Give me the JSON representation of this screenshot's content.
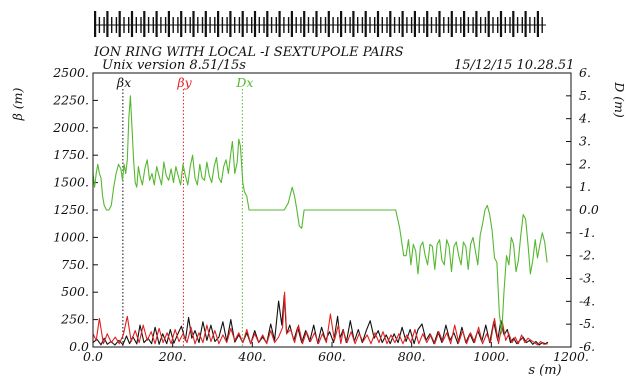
{
  "chart_data": {
    "type": "line",
    "title": "ION RING WITH LOCAL -I SEXTUPOLE PAIRS",
    "subtitle": "Unix version 8.51/15s",
    "timestamp": "15/12/15  10.28.51",
    "xlabel": "s (m)",
    "ylabel_left": "β (m)",
    "ylabel_right": "D (m)",
    "xlim": [
      0,
      1200
    ],
    "ylim_left": [
      0,
      2500
    ],
    "ylim_right": [
      -6,
      6
    ],
    "x_ticks": [
      "0.0",
      "200.",
      "400.",
      "600.",
      "800.",
      "1000.",
      "1200."
    ],
    "y_ticks_left": [
      "0.0",
      "250.",
      "500.",
      "750.",
      "1000.",
      "1250.",
      "1500.",
      "1750.",
      "2000.",
      "2250.",
      "2500."
    ],
    "y_ticks_right": [
      "-6.",
      "-5.",
      "-4.",
      "-3.",
      "-2.",
      "-1.",
      "0.0",
      "1.",
      "2.",
      "3.",
      "4.",
      "5.",
      "6."
    ],
    "grid": false,
    "series": [
      {
        "name": "βx",
        "axis": "left",
        "color": "#111111",
        "x": [
          0,
          10,
          20,
          28,
          36,
          45,
          55,
          65,
          75,
          84,
          92,
          100,
          110,
          118,
          128,
          138,
          147,
          156,
          166,
          175,
          185,
          194,
          203,
          212,
          222,
          232,
          240,
          248,
          256,
          266,
          276,
          286,
          296,
          306,
          316,
          326,
          336,
          346,
          356,
          366,
          376,
          386,
          396,
          406,
          416,
          426,
          436,
          446,
          456,
          466,
          474,
          480,
          486,
          494,
          504,
          514,
          524,
          534,
          544,
          554,
          564,
          574,
          584,
          594,
          604,
          614,
          620,
          628,
          636,
          646,
          656,
          666,
          676,
          686,
          696,
          706,
          716,
          726,
          736,
          746,
          756,
          766,
          776,
          786,
          796,
          806,
          816,
          826,
          836,
          846,
          856,
          866,
          876,
          886,
          896,
          906,
          916,
          926,
          936,
          946,
          956,
          966,
          976,
          986,
          996,
          1006,
          1016,
          1024,
          1032,
          1040,
          1048,
          1056,
          1064,
          1072,
          1080,
          1088,
          1096,
          1104,
          1112,
          1120,
          1128,
          1136,
          1142
        ],
        "y": [
          40,
          70,
          20,
          80,
          25,
          50,
          18,
          60,
          22,
          100,
          30,
          95,
          28,
          200,
          40,
          80,
          30,
          180,
          25,
          120,
          30,
          160,
          35,
          110,
          190,
          60,
          270,
          80,
          150,
          40,
          230,
          60,
          200,
          50,
          90,
          230,
          50,
          250,
          45,
          110,
          40,
          130,
          30,
          150,
          40,
          90,
          35,
          210,
          60,
          420,
          200,
          470,
          120,
          200,
          60,
          180,
          40,
          150,
          50,
          200,
          35,
          180,
          60,
          140,
          40,
          280,
          80,
          160,
          40,
          240,
          50,
          160,
          40,
          150,
          240,
          80,
          150,
          40,
          110,
          30,
          120,
          40,
          180,
          50,
          160,
          30,
          160,
          210,
          60,
          120,
          30,
          140,
          40,
          200,
          60,
          130,
          30,
          180,
          40,
          120,
          40,
          150,
          50,
          200,
          40,
          230,
          60,
          240,
          110,
          160,
          40,
          80,
          30,
          60,
          90,
          40,
          60,
          25,
          50,
          18,
          40,
          30,
          45
        ]
      },
      {
        "name": "βy",
        "axis": "left",
        "color": "#e02020",
        "x": [
          0,
          8,
          16,
          26,
          36,
          46,
          56,
          66,
          76,
          86,
          96,
          106,
          116,
          126,
          136,
          146,
          156,
          166,
          176,
          186,
          196,
          206,
          216,
          226,
          236,
          246,
          256,
          266,
          276,
          286,
          296,
          306,
          316,
          326,
          336,
          346,
          356,
          366,
          376,
          386,
          396,
          406,
          416,
          426,
          436,
          446,
          456,
          466,
          476,
          481,
          486,
          496,
          506,
          516,
          526,
          536,
          546,
          556,
          566,
          576,
          586,
          596,
          606,
          616,
          622,
          628,
          638,
          648,
          658,
          668,
          678,
          688,
          698,
          708,
          718,
          728,
          738,
          748,
          758,
          768,
          778,
          788,
          798,
          808,
          818,
          828,
          838,
          848,
          858,
          868,
          878,
          888,
          898,
          908,
          918,
          928,
          938,
          948,
          958,
          968,
          978,
          988,
          998,
          1008,
          1018,
          1028,
          1036,
          1044,
          1052,
          1060,
          1068,
          1076,
          1084,
          1092,
          1100,
          1108,
          1116,
          1124,
          1132,
          1142
        ],
        "y": [
          120,
          60,
          260,
          30,
          120,
          40,
          90,
          30,
          110,
          280,
          50,
          150,
          40,
          200,
          60,
          140,
          30,
          170,
          40,
          130,
          30,
          160,
          50,
          120,
          40,
          180,
          30,
          130,
          40,
          200,
          50,
          150,
          30,
          110,
          40,
          170,
          60,
          130,
          40,
          160,
          30,
          120,
          40,
          110,
          30,
          150,
          40,
          90,
          180,
          500,
          120,
          160,
          40,
          200,
          30,
          140,
          50,
          130,
          30,
          120,
          40,
          300,
          60,
          200,
          30,
          150,
          40,
          140,
          30,
          120,
          50,
          110,
          30,
          130,
          40,
          140,
          30,
          110,
          40,
          120,
          30,
          110,
          40,
          160,
          30,
          120,
          40,
          110,
          30,
          140,
          50,
          130,
          30,
          200,
          40,
          150,
          30,
          130,
          40,
          180,
          30,
          120,
          40,
          260,
          30,
          220,
          60,
          120,
          40,
          90,
          30,
          110,
          40,
          80,
          60,
          40,
          20,
          50,
          25,
          30
        ]
      },
      {
        "name": "Dx",
        "axis": "right",
        "color": "#55b830",
        "x": [
          0,
          4,
          8,
          12,
          16,
          20,
          24,
          28,
          34,
          40,
          46,
          52,
          58,
          64,
          70,
          74,
          78,
          82,
          86,
          90,
          94,
          98,
          102,
          106,
          110,
          114,
          118,
          124,
          130,
          136,
          142,
          148,
          154,
          160,
          166,
          172,
          178,
          184,
          190,
          196,
          202,
          208,
          214,
          220,
          226,
          232,
          238,
          244,
          250,
          256,
          262,
          268,
          274,
          280,
          286,
          292,
          298,
          304,
          310,
          316,
          322,
          328,
          334,
          340,
          346,
          350,
          356,
          362,
          366,
          370,
          376,
          380,
          386,
          392,
          400,
          420,
          440,
          460,
          480,
          490,
          500,
          506,
          512,
          518,
          524,
          530,
          540,
          560,
          600,
          640,
          680,
          700,
          720,
          740,
          760,
          770,
          780,
          786,
          792,
          798,
          804,
          810,
          816,
          822,
          828,
          834,
          840,
          846,
          852,
          858,
          864,
          870,
          876,
          882,
          888,
          894,
          900,
          906,
          912,
          918,
          924,
          930,
          936,
          942,
          948,
          954,
          960,
          966,
          972,
          978,
          984,
          990,
          996,
          1002,
          1008,
          1014,
          1020,
          1026,
          1032,
          1038,
          1044,
          1050,
          1056,
          1062,
          1068,
          1074,
          1080,
          1086,
          1092,
          1098,
          1104,
          1110,
          1116,
          1122,
          1128,
          1134,
          1140
        ],
        "y": [
          1.6,
          1.0,
          1.6,
          2.0,
          1.6,
          1.4,
          0.6,
          0.2,
          0.0,
          0.0,
          0.2,
          1.0,
          1.6,
          2.0,
          1.8,
          1.3,
          2.0,
          1.6,
          2.2,
          4.0,
          5.0,
          3.6,
          2.2,
          1.2,
          1.0,
          1.9,
          1.5,
          1.1,
          1.8,
          2.2,
          1.3,
          1.6,
          1.1,
          1.9,
          1.5,
          1.1,
          2.1,
          1.5,
          1.3,
          1.8,
          1.2,
          1.9,
          1.5,
          1.1,
          2.0,
          1.5,
          1.1,
          1.9,
          2.4,
          1.4,
          1.1,
          2.0,
          1.4,
          1.3,
          2.1,
          1.5,
          1.2,
          1.9,
          2.3,
          1.4,
          1.2,
          1.9,
          2.2,
          1.6,
          2.5,
          3.0,
          1.6,
          2.1,
          3.1,
          2.8,
          1.2,
          0.8,
          0.6,
          0.0,
          0.0,
          0.0,
          0.0,
          0.0,
          0.0,
          0.3,
          1.0,
          0.6,
          0.0,
          -0.7,
          -0.8,
          0.0,
          0.0,
          0.0,
          0.0,
          0.0,
          0.0,
          0.0,
          0.0,
          0.0,
          0.0,
          -0.8,
          -2.0,
          -2.0,
          -1.3,
          -2.4,
          -1.5,
          -1.8,
          -2.8,
          -1.6,
          -1.4,
          -2.0,
          -2.4,
          -1.5,
          -1.6,
          -2.6,
          -1.5,
          -1.3,
          -2.2,
          -2.4,
          -1.3,
          -1.6,
          -2.7,
          -1.6,
          -1.4,
          -2.0,
          -2.4,
          -1.4,
          -1.6,
          -2.6,
          -1.5,
          -1.2,
          -1.8,
          -2.4,
          -1.1,
          -0.6,
          0.0,
          0.2,
          -0.2,
          -0.9,
          -2.1,
          -2.3,
          -4.5,
          -5.4,
          -3.5,
          -2.0,
          -2.4,
          -1.2,
          -1.5,
          -2.7,
          -2.2,
          -1.1,
          -0.2,
          -0.4,
          -1.5,
          -2.8,
          -2.2,
          -1.3,
          -2.1,
          -1.5,
          -1.0,
          -1.4,
          -2.3
        ]
      }
    ],
    "markers": [
      {
        "label": "βx",
        "x": 75,
        "color": "#111111"
      },
      {
        "label": "βy",
        "x": 227,
        "color": "#e02020"
      },
      {
        "label": "Dx",
        "x": 375,
        "color": "#55b830"
      }
    ]
  }
}
